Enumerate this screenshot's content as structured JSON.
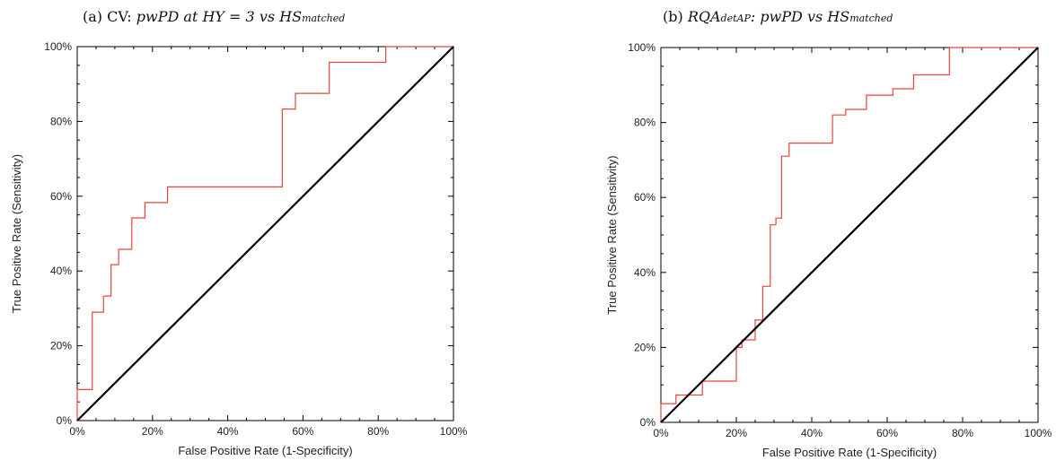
{
  "chart_data": [
    {
      "type": "line",
      "title": {
        "prefix": "(a) ",
        "parts": [
          {
            "text": "CV: ",
            "italic": false
          },
          {
            "text": "pwPD at HY = 3 vs HS",
            "italic": true
          },
          {
            "text": "matched",
            "italic": true,
            "small": true
          }
        ],
        "full": "(a) CV: pwPD at HY = 3 vs HSmatched"
      },
      "xlabel": "False Positive Rate (1-Specificity)",
      "ylabel": "True Positive Rate (Sensitivity)",
      "xlim": [
        0,
        100
      ],
      "ylim": [
        0,
        100
      ],
      "xticks": [
        0,
        20,
        40,
        60,
        80,
        100
      ],
      "yticks": [
        0,
        20,
        40,
        60,
        80,
        100
      ],
      "tick_labels_x": [
        "0%",
        "20%",
        "40%",
        "60%",
        "80%",
        "100%"
      ],
      "tick_labels_y": [
        "0%",
        "20%",
        "40%",
        "60%",
        "80%",
        "100%"
      ],
      "minor_ticks": true,
      "colors": {
        "roc": "#e8453c",
        "diagonal": "#000000"
      },
      "series": [
        {
          "role": "roc-curve",
          "x": [
            0,
            0,
            4,
            4,
            7,
            7,
            9,
            9,
            11,
            11,
            14.5,
            14.5,
            18,
            18,
            24,
            24,
            54.5,
            54.5,
            58,
            58,
            67,
            67,
            82,
            82,
            100
          ],
          "y": [
            0,
            8.3,
            8.3,
            29,
            29,
            33.3,
            33.3,
            41.7,
            41.7,
            45.8,
            45.8,
            54.2,
            54.2,
            58.3,
            58.3,
            62.5,
            62.5,
            83.3,
            83.3,
            87.5,
            87.5,
            95.8,
            95.8,
            100,
            100
          ]
        },
        {
          "role": "reference-diagonal",
          "x": [
            0,
            100
          ],
          "y": [
            0,
            100
          ]
        }
      ]
    },
    {
      "type": "line",
      "title": {
        "prefix": "(b) ",
        "parts": [
          {
            "text": "RQA",
            "italic": true
          },
          {
            "text": "detAP",
            "italic": true,
            "small": true
          },
          {
            "text": ": pwPD vs HS",
            "italic": true
          },
          {
            "text": "matched",
            "italic": true,
            "small": true
          }
        ],
        "full": "(b) RQAdetAP: pwPD vs HSmatched"
      },
      "xlabel": "False Positive Rate (1-Specificity)",
      "ylabel": "True Positive Rate (Sensitivity)",
      "xlim": [
        0,
        100
      ],
      "ylim": [
        0,
        100
      ],
      "xticks": [
        0,
        20,
        40,
        60,
        80,
        100
      ],
      "yticks": [
        0,
        20,
        40,
        60,
        80,
        100
      ],
      "tick_labels_x": [
        "0%",
        "20%",
        "40%",
        "60%",
        "80%",
        "100%"
      ],
      "tick_labels_y": [
        "0%",
        "20%",
        "40%",
        "60%",
        "80%",
        "100%"
      ],
      "minor_ticks": true,
      "colors": {
        "roc": "#e8453c",
        "diagonal": "#000000"
      },
      "series": [
        {
          "role": "roc-curve",
          "x": [
            0,
            0,
            4,
            4,
            11,
            11,
            20,
            20,
            21.5,
            21.5,
            25,
            25,
            27,
            27,
            29,
            29,
            30.5,
            30.5,
            32,
            32,
            34,
            34,
            35.5,
            35.5,
            45.5,
            45.5,
            49,
            49,
            54.5,
            54.5,
            61.5,
            61.5,
            67,
            67,
            76.5,
            76.5,
            100
          ],
          "y": [
            0,
            5,
            5,
            7.3,
            7.3,
            11,
            11,
            20,
            20,
            22,
            22,
            27.3,
            27.3,
            36.3,
            36.3,
            52.7,
            52.7,
            54.5,
            54.5,
            71,
            71,
            74.5,
            74.5,
            74.5,
            74.5,
            82,
            82,
            83.5,
            83.5,
            87.3,
            87.3,
            89,
            89,
            92.7,
            92.7,
            100,
            100
          ]
        },
        {
          "role": "reference-diagonal",
          "x": [
            0,
            100
          ],
          "y": [
            0,
            100
          ]
        }
      ]
    }
  ]
}
